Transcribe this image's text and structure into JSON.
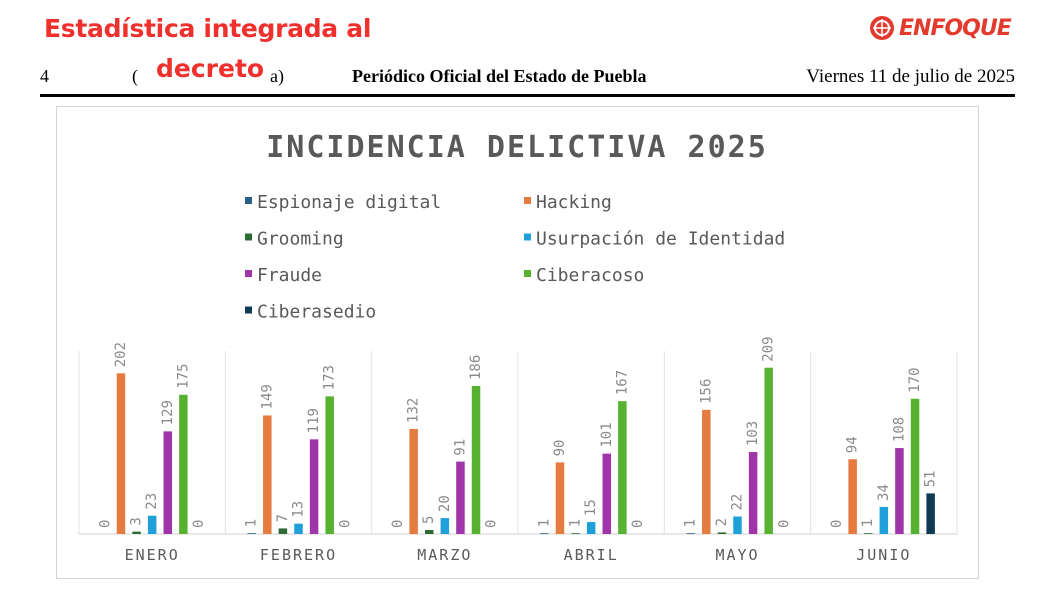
{
  "header": {
    "headline_line1": "Estadística integrada al",
    "headline_line2": "decreto",
    "logo_text": "ENFOQUE",
    "page_number": "4",
    "paren_left": "(",
    "paren_right": "a)",
    "publication": "Periódico Oficial del Estado de Puebla",
    "date": "Viernes 11 de julio de 2025",
    "brand_color": "#f0302c"
  },
  "chart_data": {
    "type": "bar",
    "title": "INCIDENCIA DELICTIVA 2025",
    "categories": [
      "ENERO",
      "FEBRERO",
      "MARZO",
      "ABRIL",
      "MAYO",
      "JUNIO"
    ],
    "series": [
      {
        "name": "Espionaje digital",
        "color": "#2a5f8a",
        "values": [
          0,
          1,
          0,
          1,
          1,
          0
        ]
      },
      {
        "name": "Hacking",
        "color": "#e57b3f",
        "values": [
          202,
          149,
          132,
          90,
          156,
          94
        ]
      },
      {
        "name": "Grooming",
        "color": "#2e6b34",
        "values": [
          3,
          7,
          5,
          1,
          2,
          1
        ]
      },
      {
        "name": "Usurpación de Identidad",
        "color": "#1fa0d8",
        "values": [
          23,
          13,
          20,
          15,
          22,
          34
        ]
      },
      {
        "name": "Fraude",
        "color": "#9f35a8",
        "values": [
          129,
          119,
          91,
          101,
          103,
          108
        ]
      },
      {
        "name": "Ciberacoso",
        "color": "#58b232",
        "values": [
          175,
          173,
          186,
          167,
          209,
          170
        ]
      },
      {
        "name": "Ciberasedio",
        "color": "#113b53",
        "values": [
          0,
          0,
          0,
          0,
          0,
          51
        ]
      }
    ],
    "ylim": [
      0,
      230
    ],
    "data_labels": true,
    "legend": "top",
    "grid": false
  }
}
